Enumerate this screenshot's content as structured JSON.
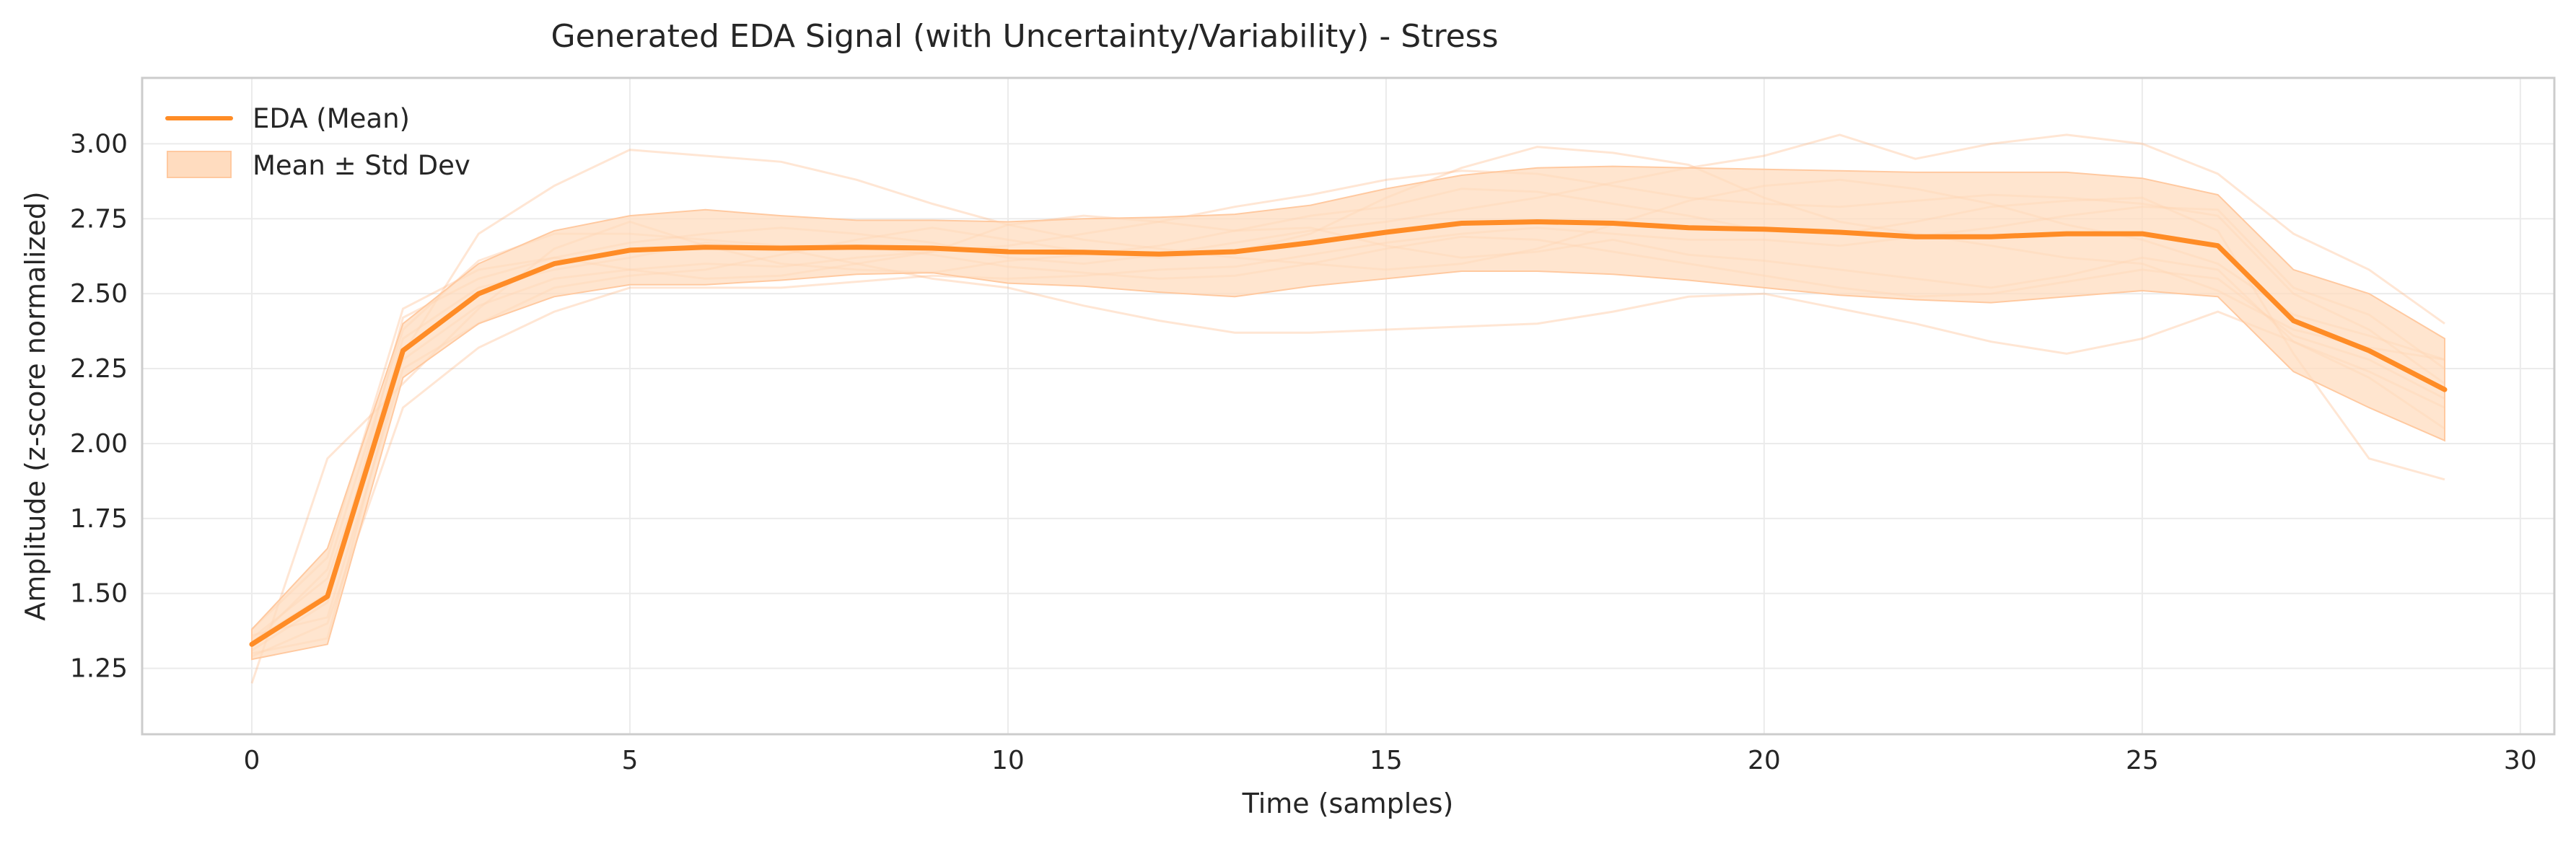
{
  "chart_data": {
    "type": "line",
    "title": "Generated EDA Signal (with Uncertainty/Variability) - Stress",
    "xlabel": "Time (samples)",
    "ylabel": "Amplitude (z-score normalized)",
    "xlim": [
      -1.45,
      30.45
    ],
    "ylim": [
      1.03,
      3.22
    ],
    "xticks": [
      0,
      5,
      10,
      15,
      20,
      25,
      30
    ],
    "yticks": [
      1.25,
      1.5,
      1.75,
      2.0,
      2.25,
      2.5,
      2.75,
      3.0
    ],
    "xtick_labels": [
      "0",
      "5",
      "10",
      "15",
      "20",
      "25",
      "30"
    ],
    "ytick_labels": [
      "1.25",
      "1.50",
      "1.75",
      "2.00",
      "2.25",
      "2.50",
      "2.75",
      "3.00"
    ],
    "grid": true,
    "legend_position": "top-left",
    "colors": {
      "mean": "#ff8c26",
      "band": "#ffdcbf",
      "samples": "#ffb27a"
    },
    "x": [
      0,
      1,
      2,
      3,
      4,
      5,
      6,
      7,
      8,
      9,
      10,
      11,
      12,
      13,
      14,
      15,
      16,
      17,
      18,
      19,
      20,
      21,
      22,
      23,
      24,
      25,
      26,
      27,
      28,
      29
    ],
    "series": [
      {
        "name": "EDA (Mean)",
        "values": [
          1.33,
          1.49,
          2.31,
          2.5,
          2.6,
          2.645,
          2.655,
          2.652,
          2.655,
          2.652,
          2.64,
          2.638,
          2.632,
          2.64,
          2.67,
          2.705,
          2.735,
          2.74,
          2.735,
          2.72,
          2.715,
          2.705,
          2.69,
          2.69,
          2.7,
          2.7,
          2.66,
          2.41,
          2.31,
          2.18
        ]
      },
      {
        "name": "Mean ± Std Dev",
        "lower": [
          1.28,
          1.33,
          2.22,
          2.4,
          2.49,
          2.53,
          2.53,
          2.545,
          2.565,
          2.57,
          2.535,
          2.525,
          2.505,
          2.49,
          2.525,
          2.55,
          2.575,
          2.575,
          2.565,
          2.545,
          2.52,
          2.495,
          2.48,
          2.47,
          2.49,
          2.51,
          2.49,
          2.24,
          2.12,
          2.01
        ],
        "upper": [
          1.38,
          1.65,
          2.4,
          2.6,
          2.71,
          2.76,
          2.78,
          2.76,
          2.745,
          2.745,
          2.74,
          2.75,
          2.755,
          2.765,
          2.795,
          2.85,
          2.895,
          2.92,
          2.925,
          2.92,
          2.915,
          2.91,
          2.905,
          2.905,
          2.905,
          2.885,
          2.83,
          2.58,
          2.5,
          2.35
        ]
      }
    ],
    "sample_traces": [
      [
        1.2,
        1.95,
        2.2,
        2.45,
        2.65,
        2.74,
        2.66,
        2.6,
        2.58,
        2.57,
        2.61,
        2.63,
        2.66,
        2.71,
        2.76,
        2.79,
        2.85,
        2.84,
        2.8,
        2.76,
        2.71,
        2.7,
        2.74,
        2.79,
        2.81,
        2.82,
        2.71,
        2.3,
        1.95,
        1.88
      ],
      [
        1.38,
        1.62,
        2.45,
        2.58,
        2.62,
        2.58,
        2.55,
        2.56,
        2.6,
        2.64,
        2.73,
        2.76,
        2.74,
        2.71,
        2.72,
        2.66,
        2.62,
        2.64,
        2.68,
        2.63,
        2.61,
        2.58,
        2.55,
        2.52,
        2.56,
        2.62,
        2.58,
        2.34,
        2.22,
        2.05
      ],
      [
        1.3,
        1.35,
        2.3,
        2.7,
        2.86,
        2.98,
        2.96,
        2.94,
        2.88,
        2.8,
        2.73,
        2.68,
        2.65,
        2.62,
        2.6,
        2.58,
        2.6,
        2.65,
        2.73,
        2.81,
        2.86,
        2.88,
        2.85,
        2.8,
        2.73,
        2.68,
        2.6,
        2.43,
        2.36,
        2.28
      ],
      [
        1.36,
        1.42,
        2.25,
        2.4,
        2.52,
        2.56,
        2.58,
        2.63,
        2.68,
        2.72,
        2.68,
        2.64,
        2.62,
        2.64,
        2.7,
        2.82,
        2.92,
        2.99,
        2.97,
        2.93,
        2.82,
        2.74,
        2.7,
        2.66,
        2.62,
        2.6,
        2.51,
        2.38,
        2.32,
        2.28
      ],
      [
        1.34,
        1.5,
        2.35,
        2.52,
        2.58,
        2.62,
        2.67,
        2.65,
        2.6,
        2.55,
        2.52,
        2.46,
        2.41,
        2.37,
        2.37,
        2.38,
        2.39,
        2.4,
        2.44,
        2.49,
        2.5,
        2.45,
        2.4,
        2.34,
        2.3,
        2.35,
        2.44,
        2.34,
        2.24,
        2.12
      ],
      [
        1.31,
        1.47,
        2.42,
        2.55,
        2.62,
        2.67,
        2.7,
        2.72,
        2.7,
        2.67,
        2.62,
        2.6,
        2.63,
        2.67,
        2.71,
        2.74,
        2.78,
        2.82,
        2.87,
        2.92,
        2.96,
        3.03,
        2.95,
        3.0,
        3.03,
        3.0,
        2.9,
        2.7,
        2.58,
        2.4
      ],
      [
        1.29,
        1.4,
        2.12,
        2.32,
        2.44,
        2.52,
        2.52,
        2.52,
        2.54,
        2.56,
        2.55,
        2.56,
        2.58,
        2.59,
        2.63,
        2.67,
        2.7,
        2.72,
        2.7,
        2.68,
        2.68,
        2.66,
        2.69,
        2.72,
        2.76,
        2.79,
        2.78,
        2.52,
        2.43,
        2.25
      ],
      [
        1.35,
        1.55,
        2.28,
        2.46,
        2.55,
        2.58,
        2.6,
        2.59,
        2.62,
        2.64,
        2.66,
        2.7,
        2.74,
        2.79,
        2.83,
        2.88,
        2.91,
        2.9,
        2.86,
        2.82,
        2.8,
        2.79,
        2.81,
        2.83,
        2.82,
        2.8,
        2.76,
        2.5,
        2.38,
        2.2
      ],
      [
        1.33,
        1.58,
        2.38,
        2.61,
        2.7,
        2.7,
        2.68,
        2.66,
        2.66,
        2.63,
        2.59,
        2.57,
        2.55,
        2.56,
        2.6,
        2.65,
        2.69,
        2.68,
        2.64,
        2.6,
        2.56,
        2.52,
        2.49,
        2.5,
        2.54,
        2.58,
        2.55,
        2.36,
        2.28,
        2.15
      ]
    ]
  },
  "legend": {
    "mean_label": "EDA (Mean)",
    "band_label": "Mean ± Std Dev"
  }
}
